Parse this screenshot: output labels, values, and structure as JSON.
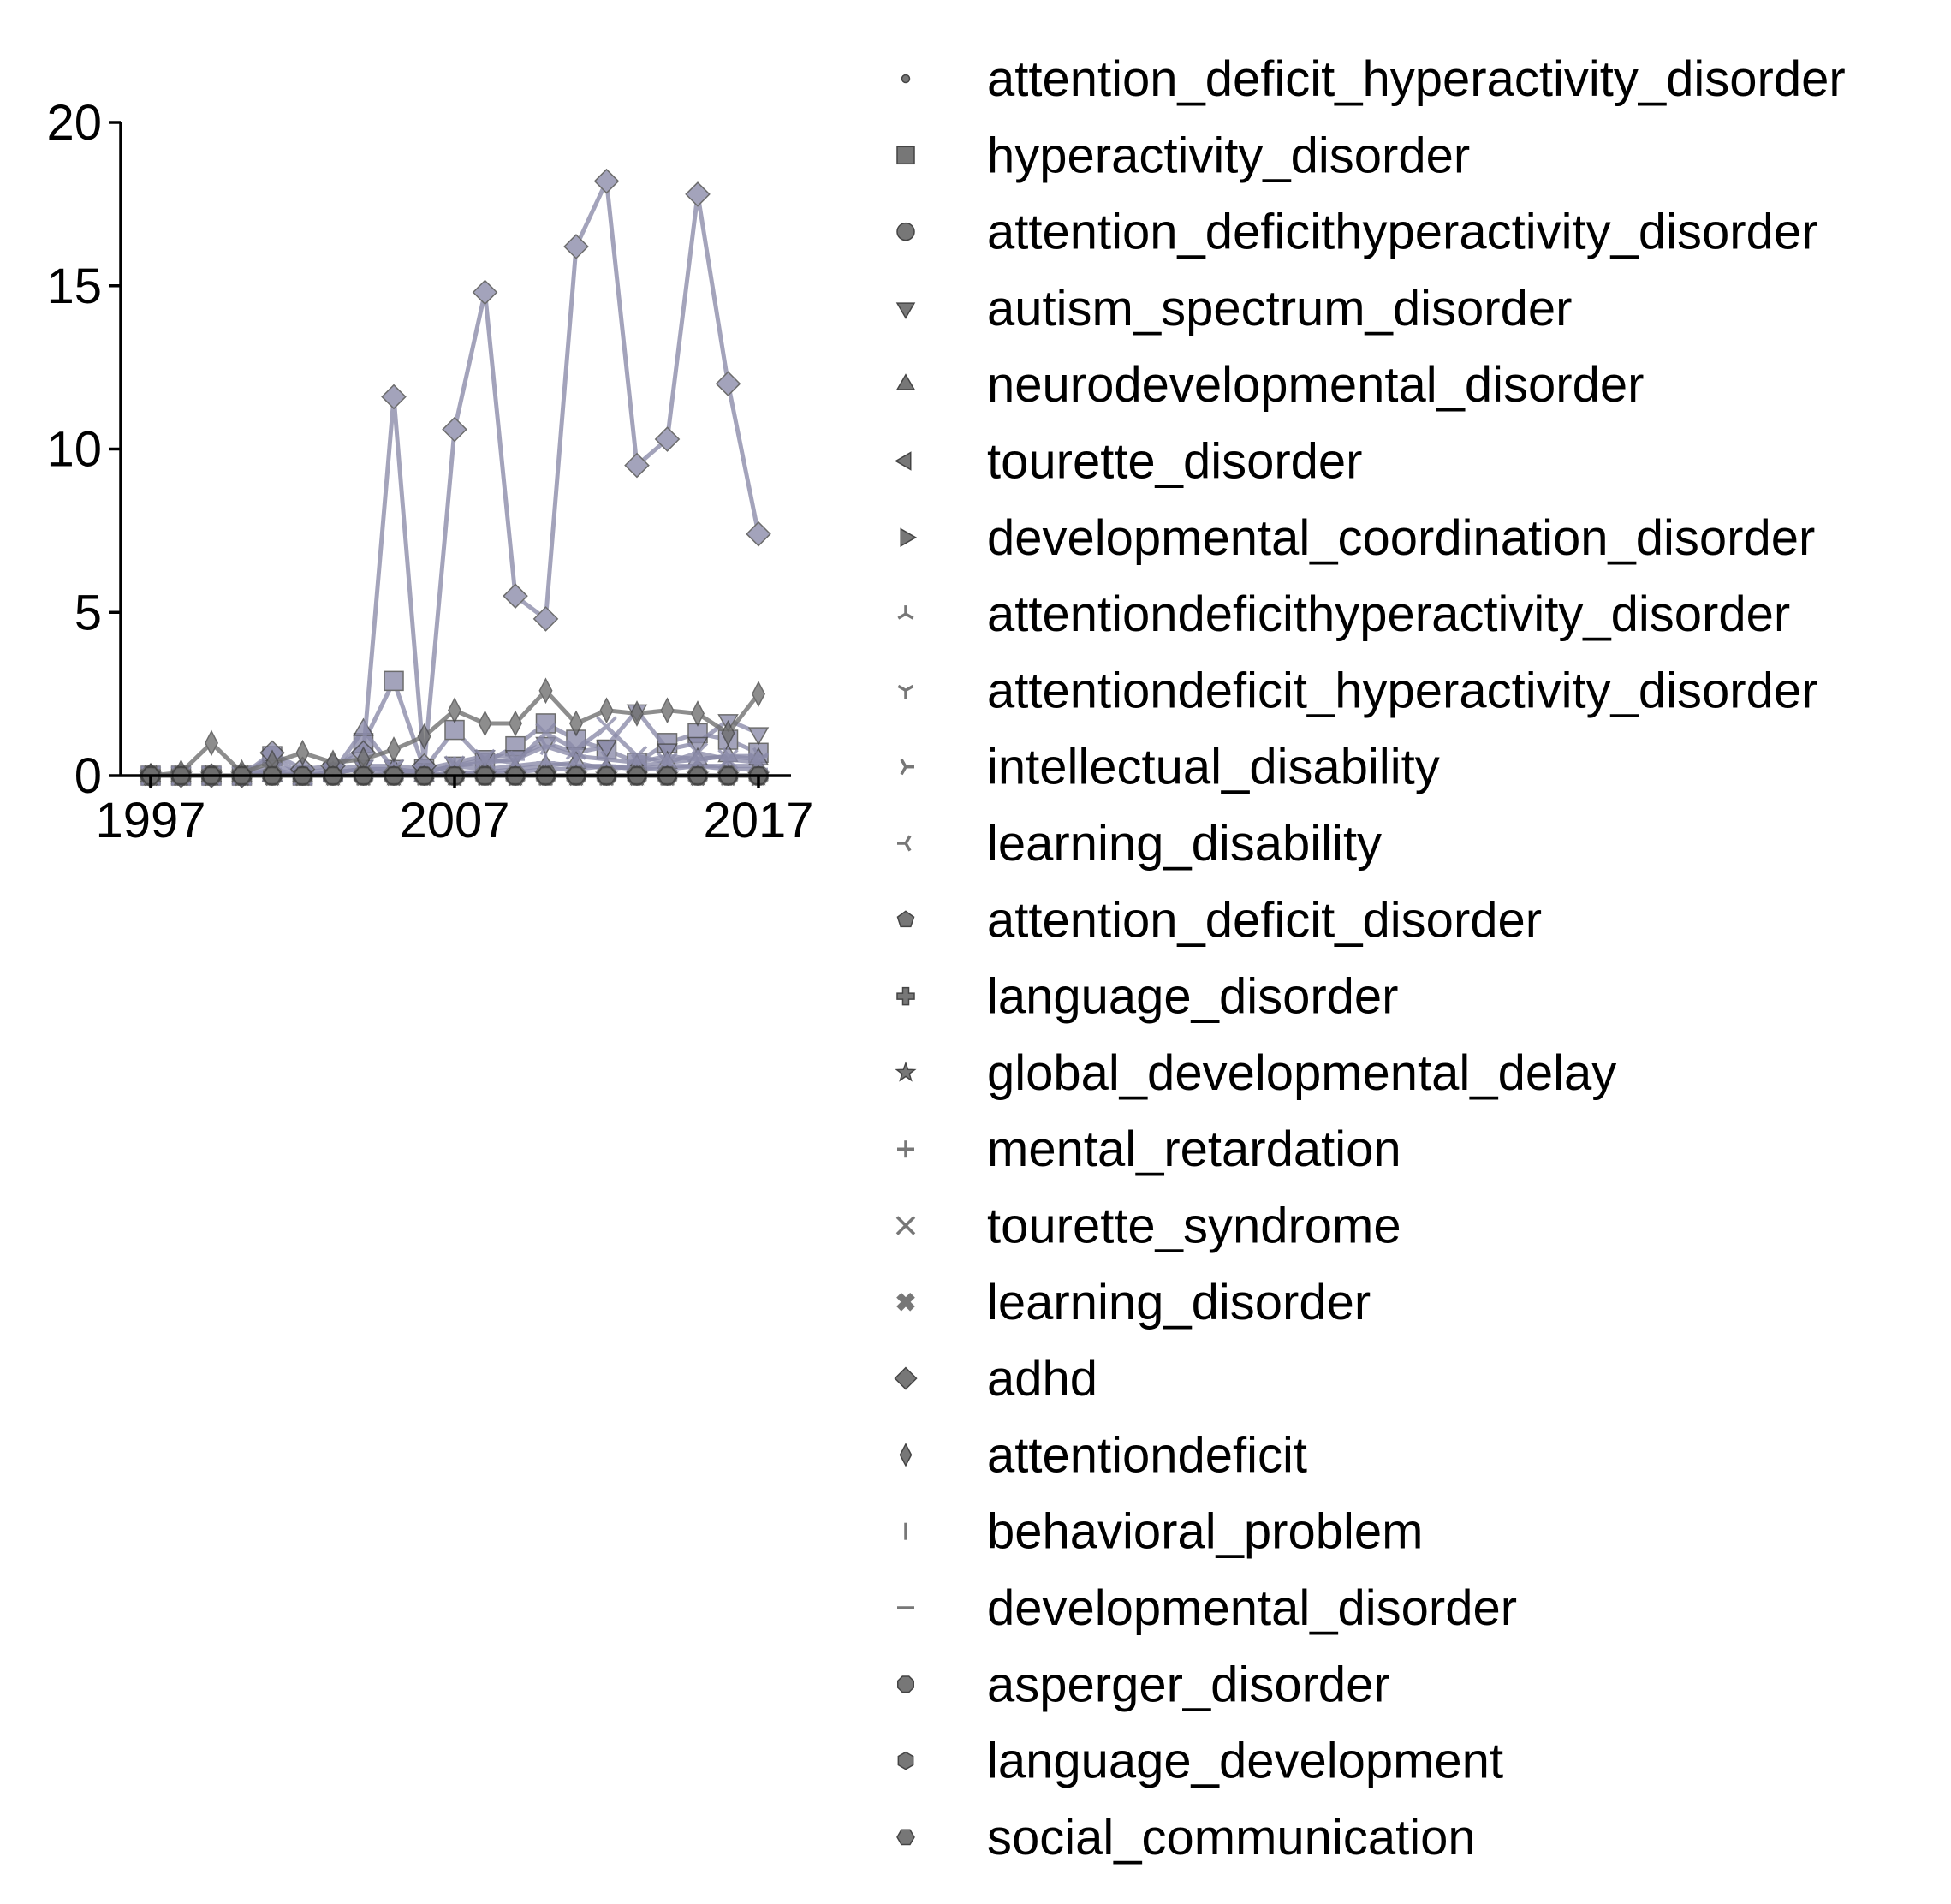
{
  "chart_data": {
    "type": "line",
    "title": "",
    "xlabel": "",
    "ylabel": "",
    "xlim": [
      1996,
      2018
    ],
    "ylim": [
      0,
      20
    ],
    "x_ticks": [
      "1997",
      "2007",
      "2017"
    ],
    "y_ticks": [
      "0",
      "5",
      "10",
      "15",
      "20"
    ],
    "grid": false,
    "legend_position": "right",
    "x": [
      1997,
      1998,
      1999,
      2000,
      2001,
      2002,
      2003,
      2004,
      2005,
      2006,
      2007,
      2008,
      2009,
      2010,
      2011,
      2012,
      2013,
      2014,
      2015,
      2016,
      2017
    ],
    "series": [
      {
        "name": "attention_deficit_hyperactivity_disorder",
        "marker": "point",
        "color": "#8a8aa8",
        "values": [
          0,
          0,
          0,
          0,
          0,
          0,
          0,
          0,
          0.1,
          0,
          0.1,
          0.1,
          0.1,
          0.2,
          0.2,
          0.3,
          0.2,
          0.2,
          0.3,
          0.3,
          0.3
        ]
      },
      {
        "name": "hyperactivity_disorder",
        "marker": "square",
        "color": "#8a8aa8",
        "values": [
          0,
          0,
          0,
          0,
          0.6,
          0,
          0.1,
          1.0,
          2.9,
          0.2,
          1.4,
          0.4,
          0.9,
          1.6,
          1.1,
          0.8,
          0.4,
          1.0,
          1.3,
          1.1,
          0.7
        ]
      },
      {
        "name": "attention_deficithyperactivity_disorder",
        "marker": "circle",
        "color": "#6e6e6e",
        "values": [
          0,
          0,
          0,
          0,
          0,
          0,
          0,
          0,
          0,
          0,
          0,
          0,
          0,
          0,
          0,
          0,
          0,
          0,
          0,
          0,
          0
        ]
      },
      {
        "name": "autism_spectrum_disorder",
        "marker": "triangle-down",
        "color": "#8a8aa8",
        "values": [
          0,
          0,
          0,
          0,
          0.3,
          0.1,
          0.2,
          0.3,
          0.3,
          0.2,
          0.4,
          0.6,
          0.6,
          1.0,
          0.7,
          0.9,
          2.0,
          0.8,
          1.0,
          1.7,
          1.3
        ]
      },
      {
        "name": "neurodevelopmental_disorder",
        "marker": "triangle-up",
        "color": "#8a8aa8",
        "values": [
          0,
          0,
          0,
          0,
          0,
          0,
          0.1,
          1.4,
          0.2,
          0,
          0.1,
          0.1,
          0.2,
          0.3,
          0.4,
          0.2,
          0.3,
          0.4,
          0.5,
          0.6,
          0.5
        ]
      },
      {
        "name": "tourette_disorder",
        "marker": "triangle-left",
        "color": "#6e6e6e",
        "values": [
          0,
          0,
          0,
          0,
          0,
          0,
          0,
          0,
          0,
          0,
          0,
          0,
          0,
          0,
          0,
          0,
          0,
          0,
          0,
          0,
          0
        ]
      },
      {
        "name": "developmental_coordination_disorder",
        "marker": "triangle-right",
        "color": "#6e6e6e",
        "values": [
          0,
          0,
          0,
          0,
          0,
          0,
          0,
          0,
          0,
          0,
          0,
          0,
          0,
          0,
          0,
          0,
          0,
          0,
          0,
          0,
          0
        ]
      },
      {
        "name": "attentiondeficithyperactivity_disorder",
        "marker": "tri-down",
        "color": "#6e6e6e",
        "values": [
          0,
          0,
          0,
          0,
          0,
          0,
          0,
          0,
          0,
          0,
          0,
          0,
          0,
          0,
          0,
          0,
          0,
          0,
          0,
          0,
          0
        ]
      },
      {
        "name": "attentiondeficit_hyperactivity_disorder",
        "marker": "tri-up",
        "color": "#6e6e6e",
        "values": [
          0,
          0,
          0,
          0,
          0,
          0,
          0,
          0,
          0,
          0,
          0,
          0,
          0,
          0,
          0,
          0,
          0,
          0,
          0,
          0,
          0
        ]
      },
      {
        "name": "intellectual_disability",
        "marker": "tri-left",
        "color": "#8a8aa8",
        "values": [
          0,
          0,
          0,
          0,
          0.2,
          0,
          0.1,
          0.2,
          0.1,
          0.1,
          0.3,
          0.4,
          0.5,
          0.9,
          0.6,
          0.5,
          0.4,
          0.6,
          0.5,
          0.6,
          0.6
        ]
      },
      {
        "name": "learning_disability",
        "marker": "tri-right",
        "color": "#6e6e6e",
        "values": [
          0,
          0,
          0,
          0,
          0,
          0,
          0,
          0,
          0,
          0,
          0,
          0,
          0,
          0,
          0,
          0,
          0,
          0,
          0,
          0,
          0
        ]
      },
      {
        "name": "attention_deficit_disorder",
        "marker": "pentagon",
        "color": "#6e6e6e",
        "values": [
          0,
          0,
          0,
          0,
          0,
          0,
          0,
          0,
          0,
          0,
          0,
          0,
          0,
          0,
          0,
          0,
          0,
          0,
          0,
          0,
          0
        ]
      },
      {
        "name": "language_disorder",
        "marker": "plus-filled",
        "color": "#6e6e6e",
        "values": [
          0,
          0,
          0,
          0,
          0,
          0,
          0,
          0,
          0,
          0,
          0,
          0,
          0,
          0,
          0,
          0,
          0,
          0,
          0,
          0,
          0
        ]
      },
      {
        "name": "global_developmental_delay",
        "marker": "star",
        "color": "#6e6e6e",
        "values": [
          0,
          0,
          0,
          0,
          0,
          0,
          0,
          0,
          0,
          0,
          0,
          0,
          0,
          0,
          0,
          0,
          0,
          0,
          0,
          0,
          0
        ]
      },
      {
        "name": "mental_retardation",
        "marker": "plus",
        "color": "#8a8aa8",
        "values": [
          0,
          0,
          0,
          0,
          0.1,
          0,
          0.1,
          0.2,
          0.2,
          0.1,
          0.3,
          0.2,
          0.3,
          0.4,
          0.3,
          0.3,
          0.2,
          0.3,
          0.3,
          0.2,
          0.2
        ]
      },
      {
        "name": "tourette_syndrome",
        "marker": "x",
        "color": "#8a8aa8",
        "values": [
          0,
          0,
          0,
          0,
          0.1,
          0,
          0.1,
          0.2,
          0.2,
          0.1,
          0.3,
          0.5,
          0.4,
          1.3,
          0.8,
          1.5,
          0.6,
          0.4,
          0.7,
          0.5,
          0.4
        ]
      },
      {
        "name": "learning_disorder",
        "marker": "x-filled",
        "color": "#6e6e6e",
        "values": [
          0,
          0,
          0,
          0,
          0,
          0,
          0,
          0,
          0,
          0,
          0,
          0,
          0,
          0,
          0,
          0,
          0,
          0,
          0,
          0,
          0
        ]
      },
      {
        "name": "adhd",
        "marker": "diamond",
        "color": "#8a8aa8",
        "values": [
          0,
          0,
          0,
          0,
          0.7,
          0.2,
          0.3,
          0.7,
          11.6,
          0.3,
          10.6,
          14.8,
          5.5,
          4.8,
          16.2,
          18.2,
          9.5,
          10.3,
          17.8,
          12.0,
          7.4
        ]
      },
      {
        "name": "attentiondeficit",
        "marker": "thin-diamond",
        "color": "#6e6e6e",
        "values": [
          0,
          0.1,
          1.0,
          0.1,
          0.4,
          0.7,
          0.4,
          0.5,
          0.8,
          1.2,
          2.0,
          1.6,
          1.6,
          2.6,
          1.6,
          2.0,
          1.9,
          2.0,
          1.9,
          1.3,
          2.5
        ]
      },
      {
        "name": "behavioral_problem",
        "marker": "vline",
        "color": "#6e6e6e",
        "values": [
          0,
          0,
          0,
          0,
          0,
          0,
          0,
          0,
          0,
          0,
          0,
          0,
          0,
          0,
          0,
          0,
          0,
          0,
          0,
          0,
          0
        ]
      },
      {
        "name": "developmental_disorder",
        "marker": "hline",
        "color": "#6e6e6e",
        "values": [
          0,
          0,
          0,
          0,
          0,
          0,
          0,
          0,
          0,
          0,
          0,
          0,
          0,
          0,
          0,
          0,
          0,
          0,
          0,
          0,
          0
        ]
      },
      {
        "name": "asperger_disorder",
        "marker": "octagon",
        "color": "#6e6e6e",
        "values": [
          0,
          0,
          0,
          0,
          0,
          0,
          0,
          0,
          0,
          0,
          0,
          0,
          0,
          0,
          0,
          0,
          0,
          0,
          0,
          0,
          0
        ]
      },
      {
        "name": "language_development",
        "marker": "hexagon",
        "color": "#6e6e6e",
        "values": [
          0,
          0,
          0,
          0,
          0,
          0,
          0,
          0,
          0,
          0,
          0,
          0,
          0,
          0,
          0,
          0,
          0,
          0,
          0,
          0,
          0
        ]
      },
      {
        "name": "social_communication",
        "marker": "hexagon2",
        "color": "#6e6e6e",
        "values": [
          0,
          0,
          0,
          0,
          0,
          0,
          0,
          0,
          0,
          0,
          0,
          0,
          0,
          0,
          0,
          0,
          0,
          0,
          0,
          0,
          0
        ]
      }
    ]
  }
}
